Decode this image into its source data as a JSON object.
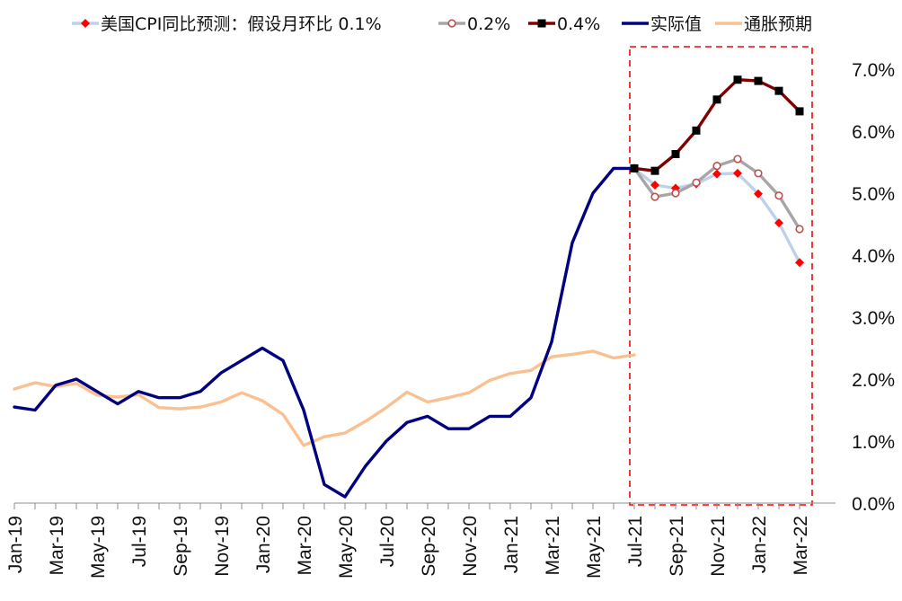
{
  "chart_data": {
    "type": "line",
    "title": "",
    "xlabel": "",
    "ylabel": "",
    "ylim": [
      0,
      7
    ],
    "y_ticks": [
      "0.0%",
      "1.0%",
      "2.0%",
      "3.0%",
      "4.0%",
      "5.0%",
      "6.0%",
      "7.0%"
    ],
    "y_axis_position": "right",
    "x_months": [
      "Jan-19",
      "Feb-19",
      "Mar-19",
      "Apr-19",
      "May-19",
      "Jun-19",
      "Jul-19",
      "Aug-19",
      "Sep-19",
      "Oct-19",
      "Nov-19",
      "Dec-19",
      "Jan-20",
      "Feb-20",
      "Mar-20",
      "Apr-20",
      "May-20",
      "Jun-20",
      "Jul-20",
      "Aug-20",
      "Sep-20",
      "Oct-20",
      "Nov-20",
      "Dec-20",
      "Jan-21",
      "Feb-21",
      "Mar-21",
      "Apr-21",
      "May-21",
      "Jun-21",
      "Jul-21",
      "Aug-21",
      "Sep-21",
      "Oct-21",
      "Nov-21",
      "Dec-21",
      "Jan-22",
      "Feb-22",
      "Mar-22"
    ],
    "x_tick_labels": [
      "Jan-19",
      "Mar-19",
      "May-19",
      "Jul-19",
      "Sep-19",
      "Nov-19",
      "Jan-20",
      "Mar-20",
      "May-20",
      "Jul-20",
      "Sep-20",
      "Nov-20",
      "Jan-21",
      "Mar-21",
      "May-21",
      "Jul-21",
      "Sep-21",
      "Nov-21",
      "Jan-22",
      "Mar-22"
    ],
    "legend_placement": "top",
    "highlight_box": {
      "from": "Jul-21",
      "to": "Mar-22",
      "style": "dashed red"
    },
    "series": [
      {
        "name": "美国CPI同比预测：假设月环比 0.1%",
        "color": "#BFD1EA",
        "marker": "diamond",
        "marker_color": "#FF0000",
        "x": [
          "Jul-21",
          "Aug-21",
          "Sep-21",
          "Oct-21",
          "Nov-21",
          "Dec-21",
          "Jan-22",
          "Feb-22",
          "Mar-22"
        ],
        "values": [
          5.4,
          5.13,
          5.08,
          5.15,
          5.31,
          5.32,
          4.99,
          4.52,
          3.88
        ]
      },
      {
        "name": "0.2%",
        "color": "#A6A6A6",
        "marker": "circle",
        "marker_color": "#C0504D",
        "x": [
          "Jul-21",
          "Aug-21",
          "Sep-21",
          "Oct-21",
          "Nov-21",
          "Dec-21",
          "Jan-22",
          "Feb-22",
          "Mar-22"
        ],
        "values": [
          5.4,
          4.94,
          5.0,
          5.17,
          5.44,
          5.55,
          5.32,
          4.96,
          4.42
        ]
      },
      {
        "name": "0.4%",
        "color": "#7F0000",
        "marker": "square",
        "marker_color": "#000000",
        "x": [
          "Jul-21",
          "Aug-21",
          "Sep-21",
          "Oct-21",
          "Nov-21",
          "Dec-21",
          "Jan-22",
          "Feb-22",
          "Mar-22"
        ],
        "values": [
          5.4,
          5.36,
          5.63,
          6.01,
          6.51,
          6.83,
          6.81,
          6.65,
          6.32
        ]
      },
      {
        "name": "实际值",
        "color": "#000080",
        "marker": "none",
        "x": [
          "Jan-19",
          "Feb-19",
          "Mar-19",
          "Apr-19",
          "May-19",
          "Jun-19",
          "Jul-19",
          "Aug-19",
          "Sep-19",
          "Oct-19",
          "Nov-19",
          "Dec-19",
          "Jan-20",
          "Feb-20",
          "Mar-20",
          "Apr-20",
          "May-20",
          "Jun-20",
          "Jul-20",
          "Aug-20",
          "Sep-20",
          "Oct-20",
          "Nov-20",
          "Dec-20",
          "Jan-21",
          "Feb-21",
          "Mar-21",
          "Apr-21",
          "May-21",
          "Jun-21",
          "Jul-21"
        ],
        "values": [
          1.55,
          1.5,
          1.9,
          2.0,
          1.8,
          1.6,
          1.8,
          1.7,
          1.7,
          1.8,
          2.1,
          2.3,
          2.5,
          2.3,
          1.5,
          0.3,
          0.1,
          0.6,
          1.0,
          1.3,
          1.4,
          1.2,
          1.2,
          1.4,
          1.4,
          1.7,
          2.6,
          4.2,
          5.0,
          5.4,
          5.4
        ]
      },
      {
        "name": "通胀预期",
        "color": "#FAC090",
        "marker": "none",
        "x": [
          "Jan-19",
          "Feb-19",
          "Mar-19",
          "Apr-19",
          "May-19",
          "Jun-19",
          "Jul-19",
          "Aug-19",
          "Sep-19",
          "Oct-19",
          "Nov-19",
          "Dec-19",
          "Jan-20",
          "Feb-20",
          "Mar-20",
          "Apr-20",
          "May-20",
          "Jun-20",
          "Jul-20",
          "Aug-20",
          "Sep-20",
          "Oct-20",
          "Nov-20",
          "Dec-20",
          "Jan-21",
          "Feb-21",
          "Mar-21",
          "Apr-21",
          "May-21",
          "Jun-21",
          "Jul-21"
        ],
        "values": [
          1.84,
          1.94,
          1.88,
          1.93,
          1.74,
          1.71,
          1.75,
          1.54,
          1.52,
          1.55,
          1.63,
          1.78,
          1.65,
          1.43,
          0.93,
          1.07,
          1.13,
          1.32,
          1.54,
          1.79,
          1.63,
          1.7,
          1.78,
          1.98,
          2.09,
          2.14,
          2.36,
          2.4,
          2.45,
          2.34,
          2.39
        ]
      }
    ]
  }
}
